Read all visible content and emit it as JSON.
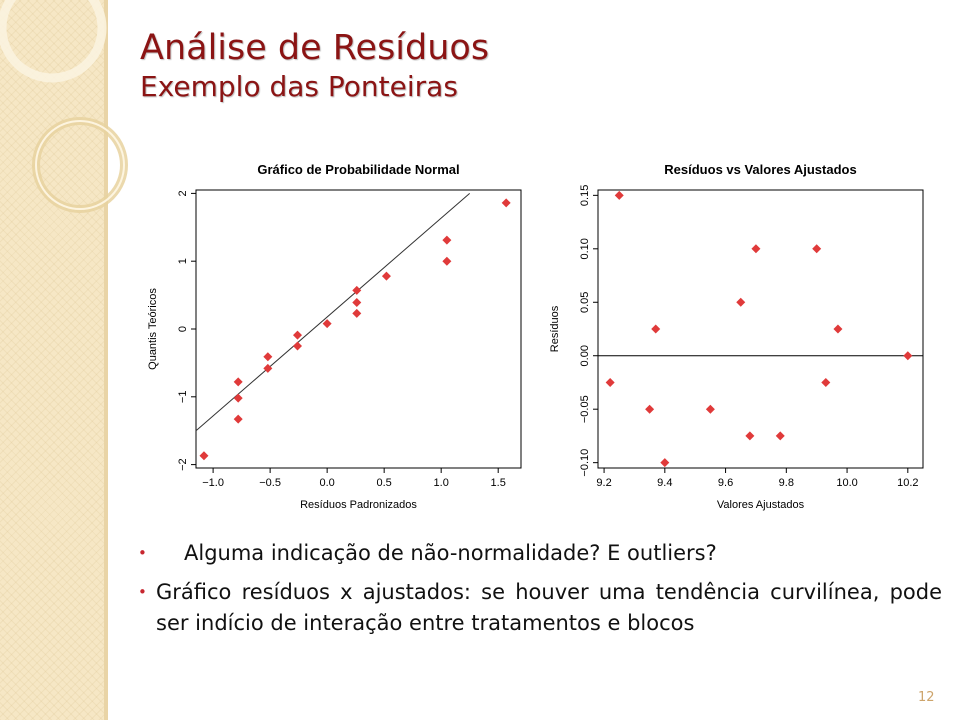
{
  "slide": {
    "title": "Análise de Resíduos",
    "subtitle": "Exemplo das Ponteiras",
    "page_number": "12",
    "accent_color": "#8b1414",
    "bullet_color": "#c7262f"
  },
  "bullets": [
    "Alguma indicação de não-normalidade? E outliers?",
    "Gráfico resíduos x ajustados: se houver uma tendência curvilínea, pode ser indício de interação entre tratamentos e blocos"
  ],
  "chart_data": [
    {
      "type": "scatter",
      "title": "Gráfico de Probabilidade Normal",
      "xlabel": "Resíduos Padronizados",
      "ylabel": "Quantis Teóricos",
      "xlim": [
        -1.15,
        1.7
      ],
      "ylim": [
        -2.05,
        2.05
      ],
      "xticks": [
        -1.0,
        -0.5,
        0.0,
        0.5,
        1.0,
        1.5
      ],
      "xtick_labels": [
        "−1.0",
        "−0.5",
        "0.0",
        "0.5",
        "1.0",
        "1.5"
      ],
      "yticks": [
        -2,
        -1,
        0,
        1,
        2
      ],
      "ytick_labels": [
        "−2",
        "−1",
        "0",
        "1",
        "2"
      ],
      "marker_color": "#e03a3a",
      "reference_line": {
        "x1": -1.15,
        "y1": -1.5,
        "x2": 1.25,
        "y2": 2.0
      },
      "points": [
        {
          "x": -1.08,
          "y": -1.87
        },
        {
          "x": -0.78,
          "y": -1.33
        },
        {
          "x": -0.78,
          "y": -1.02
        },
        {
          "x": -0.78,
          "y": -0.78
        },
        {
          "x": -0.52,
          "y": -0.58
        },
        {
          "x": -0.52,
          "y": -0.41
        },
        {
          "x": -0.26,
          "y": -0.25
        },
        {
          "x": -0.26,
          "y": -0.09
        },
        {
          "x": 0.0,
          "y": 0.08
        },
        {
          "x": 0.26,
          "y": 0.23
        },
        {
          "x": 0.26,
          "y": 0.39
        },
        {
          "x": 0.26,
          "y": 0.57
        },
        {
          "x": 0.52,
          "y": 0.78
        },
        {
          "x": 1.05,
          "y": 1.0
        },
        {
          "x": 1.05,
          "y": 1.31
        },
        {
          "x": 1.57,
          "y": 1.86
        }
      ]
    },
    {
      "type": "scatter",
      "title": "Resíduos vs Valores Ajustados",
      "xlabel": "Valores Ajustados",
      "ylabel": "Resíduos",
      "xlim": [
        9.18,
        10.25
      ],
      "ylim": [
        -0.105,
        0.155
      ],
      "xticks": [
        9.2,
        9.4,
        9.6,
        9.8,
        10.0,
        10.2
      ],
      "xtick_labels": [
        "9.2",
        "9.4",
        "9.6",
        "9.8",
        "10.0",
        "10.2"
      ],
      "yticks": [
        -0.1,
        -0.05,
        0.0,
        0.05,
        0.1,
        0.15
      ],
      "ytick_labels": [
        "−0.10",
        "−0.05",
        "0.00",
        "0.05",
        "0.10",
        "0.15"
      ],
      "marker_color": "#e03a3a",
      "reference_hline": 0.0,
      "points": [
        {
          "x": 9.22,
          "y": -0.025
        },
        {
          "x": 9.25,
          "y": 0.15
        },
        {
          "x": 9.35,
          "y": -0.05
        },
        {
          "x": 9.37,
          "y": 0.025
        },
        {
          "x": 9.4,
          "y": -0.1
        },
        {
          "x": 9.55,
          "y": -0.05
        },
        {
          "x": 9.65,
          "y": 0.05
        },
        {
          "x": 9.68,
          "y": -0.075
        },
        {
          "x": 9.7,
          "y": 0.1
        },
        {
          "x": 9.78,
          "y": -0.075
        },
        {
          "x": 9.9,
          "y": 0.1
        },
        {
          "x": 9.93,
          "y": -0.025
        },
        {
          "x": 9.97,
          "y": 0.025
        },
        {
          "x": 10.2,
          "y": 0.0
        }
      ]
    }
  ]
}
